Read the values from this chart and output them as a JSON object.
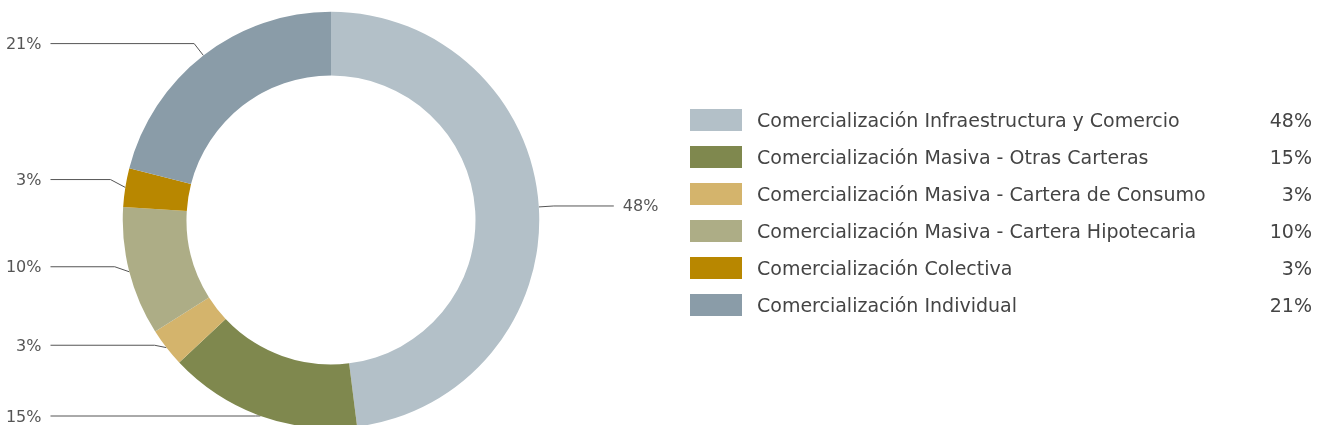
{
  "chart_data": {
    "type": "donut",
    "categories": [
      "Comercialización Infraestructura y Comercio",
      "Comercialización Masiva - Otras Carteras",
      "Comercialización Masiva - Cartera de Consumo",
      "Comercialización Masiva - Cartera Hipotecaria",
      "Comercialización Colectiva",
      "Comercialización Individual"
    ],
    "values": [
      48,
      15,
      3,
      10,
      3,
      21
    ],
    "colors": [
      "#b3c0c8",
      "#7f884e",
      "#d4b46c",
      "#adad86",
      "#b88700",
      "#8a9ca8"
    ],
    "value_labels": [
      "48%",
      "15%",
      "3%",
      "10%",
      "3%",
      "21%"
    ],
    "legend": "right"
  }
}
